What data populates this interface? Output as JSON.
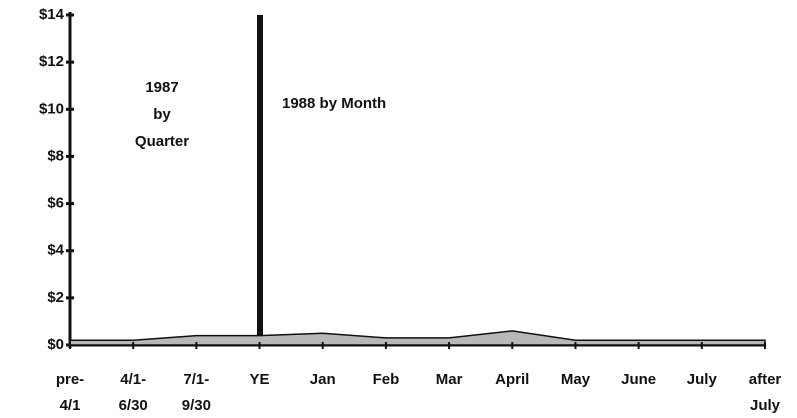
{
  "chart_data": {
    "type": "area",
    "categories": [
      "pre-\n4/1",
      "4/1-\n6/30",
      "7/1-\n9/30",
      "YE",
      "Jan",
      "Feb",
      "Mar",
      "April",
      "May",
      "June",
      "July",
      "after\nJuly"
    ],
    "values": [
      0.2,
      0.2,
      0.4,
      0.4,
      0.5,
      0.3,
      0.3,
      0.6,
      0.2,
      0.2,
      0.2,
      0.2
    ],
    "color": "#b8b8b8",
    "ylim": [
      0,
      14
    ],
    "yticks": [
      {
        "value": 0,
        "label": "$0"
      },
      {
        "value": 2,
        "label": "$2"
      },
      {
        "value": 4,
        "label": "$4"
      },
      {
        "value": 6,
        "label": "$6"
      },
      {
        "value": 8,
        "label": "$8"
      },
      {
        "value": 10,
        "label": "$10"
      },
      {
        "value": 12,
        "label": "$12"
      },
      {
        "value": 14,
        "label": "$14"
      }
    ],
    "annotations": [
      [
        "1987",
        "by",
        "Quarter"
      ],
      [
        "1988 by Month"
      ]
    ]
  }
}
